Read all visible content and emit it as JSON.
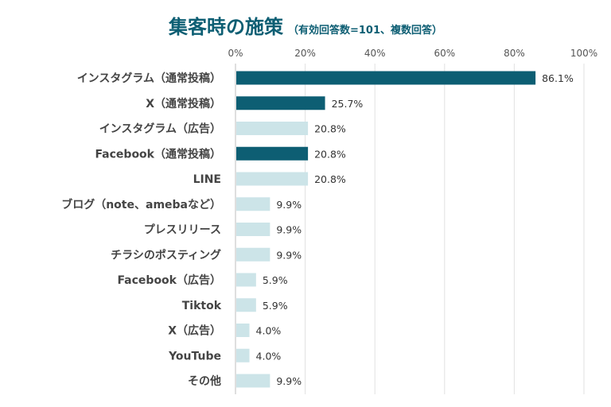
{
  "chart_data": {
    "type": "bar",
    "orientation": "horizontal",
    "title": "集客時の施策",
    "subtitle": "（有効回答数=101、複数回答）",
    "xlim": [
      0,
      100
    ],
    "ticks": [
      "0%",
      "20%",
      "40%",
      "60%",
      "80%",
      "100%"
    ],
    "tick_values": [
      0,
      20,
      40,
      60,
      80,
      100
    ],
    "grid": true,
    "categories": [
      "インスタグラム（通常投稿）",
      "X（通常投稿）",
      "インスタグラム（広告）",
      "Facebook（通常投稿）",
      "LINE",
      "ブログ（note、amebaなど）",
      "プレスリリース",
      "チラシのポスティング",
      "Facebook（広告）",
      "Tiktok",
      "X（広告）",
      "YouTube",
      "その他"
    ],
    "values": [
      86.1,
      25.7,
      20.8,
      20.8,
      20.8,
      9.9,
      9.9,
      9.9,
      5.9,
      5.9,
      4.0,
      4.0,
      9.9
    ],
    "value_labels": [
      "86.1%",
      "25.7%",
      "20.8%",
      "20.8%",
      "20.8%",
      "9.9%",
      "9.9%",
      "9.9%",
      "5.9%",
      "5.9%",
      "4.0%",
      "4.0%",
      "9.9%"
    ],
    "highlight": [
      true,
      true,
      false,
      true,
      false,
      false,
      false,
      false,
      false,
      false,
      false,
      false,
      false
    ],
    "colors": {
      "highlight": "#0d5e73",
      "normal": "#cce4e8"
    }
  }
}
